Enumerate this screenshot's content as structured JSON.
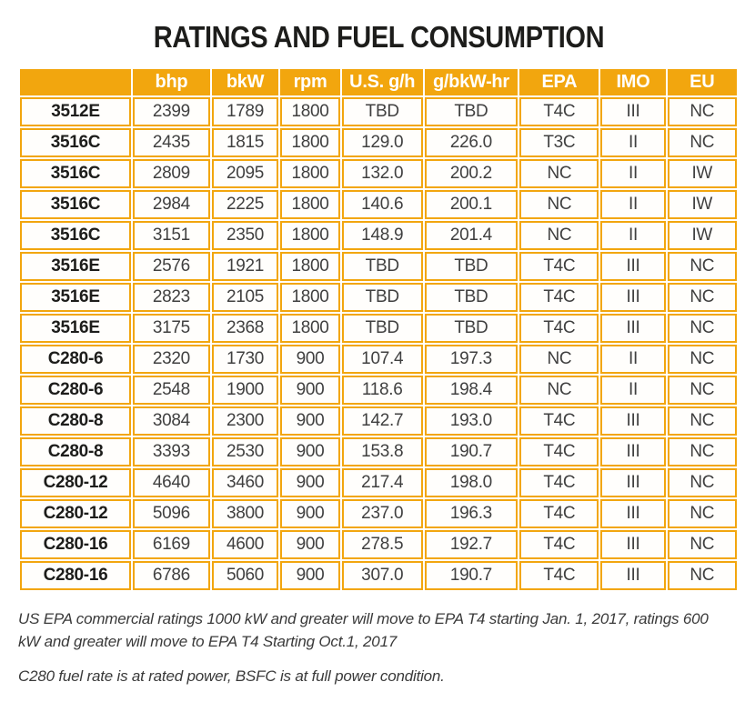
{
  "title": "RATINGS AND FUEL CONSUMPTION",
  "table": {
    "columns": [
      "",
      "bhp",
      "bkW",
      "rpm",
      "U.S. g/h",
      "g/bkW-hr",
      "EPA",
      "IMO",
      "EU"
    ],
    "rows": [
      [
        "3512E",
        "2399",
        "1789",
        "1800",
        "TBD",
        "TBD",
        "T4C",
        "III",
        "NC"
      ],
      [
        "3516C",
        "2435",
        "1815",
        "1800",
        "129.0",
        "226.0",
        "T3C",
        "II",
        "NC"
      ],
      [
        "3516C",
        "2809",
        "2095",
        "1800",
        "132.0",
        "200.2",
        "NC",
        "II",
        "IW"
      ],
      [
        "3516C",
        "2984",
        "2225",
        "1800",
        "140.6",
        "200.1",
        "NC",
        "II",
        "IW"
      ],
      [
        "3516C",
        "3151",
        "2350",
        "1800",
        "148.9",
        "201.4",
        "NC",
        "II",
        "IW"
      ],
      [
        "3516E",
        "2576",
        "1921",
        "1800",
        "TBD",
        "TBD",
        "T4C",
        "III",
        "NC"
      ],
      [
        "3516E",
        "2823",
        "2105",
        "1800",
        "TBD",
        "TBD",
        "T4C",
        "III",
        "NC"
      ],
      [
        "3516E",
        "3175",
        "2368",
        "1800",
        "TBD",
        "TBD",
        "T4C",
        "III",
        "NC"
      ],
      [
        "C280-6",
        "2320",
        "1730",
        "900",
        "107.4",
        "197.3",
        "NC",
        "II",
        "NC"
      ],
      [
        "C280-6",
        "2548",
        "1900",
        "900",
        "118.6",
        "198.4",
        "NC",
        "II",
        "NC"
      ],
      [
        "C280-8",
        "3084",
        "2300",
        "900",
        "142.7",
        "193.0",
        "T4C",
        "III",
        "NC"
      ],
      [
        "C280-8",
        "3393",
        "2530",
        "900",
        "153.8",
        "190.7",
        "T4C",
        "III",
        "NC"
      ],
      [
        "C280-12",
        "4640",
        "3460",
        "900",
        "217.4",
        "198.0",
        "T4C",
        "III",
        "NC"
      ],
      [
        "C280-12",
        "5096",
        "3800",
        "900",
        "237.0",
        "196.3",
        "T4C",
        "III",
        "NC"
      ],
      [
        "C280-16",
        "6169",
        "4600",
        "900",
        "278.5",
        "192.7",
        "T4C",
        "III",
        "NC"
      ],
      [
        "C280-16",
        "6786",
        "5060",
        "900",
        "307.0",
        "190.7",
        "T4C",
        "III",
        "NC"
      ]
    ]
  },
  "notes": [
    "US EPA commercial ratings 1000 kW and greater will move to EPA T4 starting Jan. 1, 2017, ratings 600 kW and greater will move to EPA T4 Starting Oct.1, 2017",
    "C280 fuel rate is at rated power, BSFC is at full power condition."
  ],
  "colors": {
    "accent": "#f2a60e",
    "header_text": "#ffffff",
    "value_text": "#404040",
    "model_text": "#1d1d1b"
  }
}
